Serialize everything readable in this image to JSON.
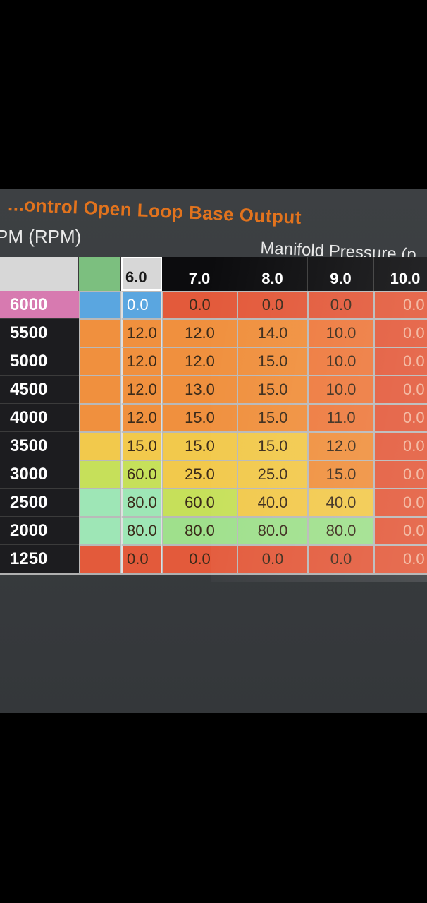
{
  "table": {
    "title": "...ontrol Open Loop Base Output",
    "y_axis_label": "PM (RPM)",
    "x_axis_label": "Manifold Pressure (p",
    "columns": [
      "",
      "6.0",
      "7.0",
      "8.0",
      "9.0",
      "10.0"
    ],
    "rows": [
      {
        "rpm": "6000",
        "highlight": true,
        "values": [
          "0.0",
          "0.0",
          "0.0",
          "0.0",
          "0.0"
        ]
      },
      {
        "rpm": "5500",
        "highlight": false,
        "values": [
          "12.0",
          "12.0",
          "14.0",
          "10.0",
          "0.0"
        ]
      },
      {
        "rpm": "5000",
        "highlight": false,
        "values": [
          "12.0",
          "12.0",
          "15.0",
          "10.0",
          "0.0"
        ]
      },
      {
        "rpm": "4500",
        "highlight": false,
        "values": [
          "12.0",
          "13.0",
          "15.0",
          "10.0",
          "0.0"
        ]
      },
      {
        "rpm": "4000",
        "highlight": false,
        "values": [
          "12.0",
          "15.0",
          "15.0",
          "11.0",
          "0.0"
        ]
      },
      {
        "rpm": "3500",
        "highlight": false,
        "values": [
          "15.0",
          "15.0",
          "15.0",
          "12.0",
          "0.0"
        ]
      },
      {
        "rpm": "3000",
        "highlight": false,
        "values": [
          "60.0",
          "25.0",
          "25.0",
          "15.0",
          "0.0"
        ]
      },
      {
        "rpm": "2500",
        "highlight": false,
        "values": [
          "80.0",
          "60.0",
          "40.0",
          "40.0",
          "0.0"
        ]
      },
      {
        "rpm": "2000",
        "highlight": false,
        "values": [
          "80.0",
          "80.0",
          "80.0",
          "80.0",
          "0.0"
        ]
      },
      {
        "rpm": "1250",
        "highlight": false,
        "values": [
          "0.0",
          "0.0",
          "0.0",
          "0.0",
          "0.0"
        ]
      }
    ],
    "colors": {
      "title": "#e2731d",
      "rpm_highlight_bg": "#d77ab0",
      "blue_cell": "#5aa6e0",
      "red": "#e35a3b",
      "orange": "#ee7a3e",
      "orange_light": "#f0903e",
      "yellow": "#f2c94c",
      "yellow_green": "#c6e05a",
      "light_green": "#9fe08c",
      "green": "#7cd68b",
      "mint": "#9ee6b6"
    }
  }
}
